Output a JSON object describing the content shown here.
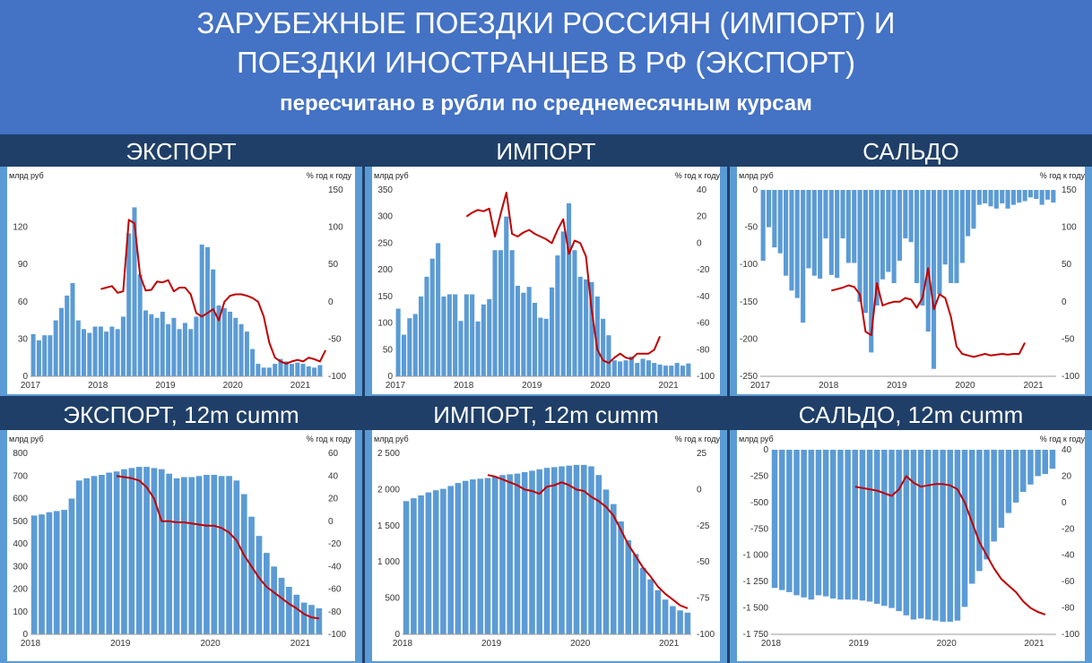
{
  "header": {
    "title_line1": "ЗАРУБЕЖНЫЕ ПОЕЗДКИ РОССИЯН (ИМПОРТ) И",
    "title_line2": "ПОЕЗДКИ ИНОСТРАНЦЕВ В РФ (ЭКСПОРТ)",
    "subtitle": "пересчитано в рубли по среднемесячным курсам"
  },
  "colors": {
    "bar": "#5b9bd5",
    "line": "#c00000",
    "header": "#4472c4",
    "background": "#1f3f68"
  },
  "chart_data": [
    {
      "type": "bar",
      "title": "ЭКСПОРТ",
      "ylabel": "млрд руб",
      "y2label": "% год к году",
      "ylim": [
        0,
        150
      ],
      "yticks": [
        0,
        30,
        60,
        90,
        120
      ],
      "y2lim": [
        -100,
        150
      ],
      "y2ticks": [
        -100,
        -50,
        0,
        50,
        100,
        150
      ],
      "xlabels": [
        "2017",
        "2018",
        "2019",
        "2020",
        "2021"
      ],
      "x0": 2017,
      "n": 52,
      "line_start": 12,
      "values": [
        34,
        29,
        33,
        33,
        45,
        55,
        65,
        75,
        45,
        38,
        35,
        40,
        40,
        36,
        40,
        38,
        48,
        115,
        136,
        82,
        53,
        50,
        47,
        52,
        42,
        47,
        38,
        43,
        38,
        48,
        106,
        104,
        86,
        57,
        55,
        52,
        47,
        42,
        36,
        22,
        10,
        7,
        7,
        10,
        14,
        12,
        10,
        11,
        10,
        8,
        7,
        9
      ],
      "yoy": [
        17,
        19,
        21,
        12,
        14,
        110,
        105,
        35,
        15,
        16,
        27,
        26,
        29,
        14,
        19,
        19,
        10,
        -15,
        -20,
        -15,
        -10,
        -25,
        0,
        8,
        10,
        10,
        8,
        5,
        0,
        -20,
        -55,
        -75,
        -80,
        -83,
        -80,
        -78,
        -80,
        -75,
        -77,
        -80,
        -65
      ]
    },
    {
      "type": "bar",
      "title": "ИМПОРТ",
      "ylabel": "млрд руб",
      "y2label": "% год к году",
      "ylim": [
        0,
        350
      ],
      "yticks": [
        0,
        50,
        100,
        150,
        200,
        250,
        300,
        350
      ],
      "y2lim": [
        -100,
        40
      ],
      "y2ticks": [
        -100,
        -80,
        -60,
        -40,
        -20,
        0,
        20,
        40
      ],
      "xlabels": [
        "2017",
        "2018",
        "2019",
        "2020",
        "2021"
      ],
      "x0": 2017,
      "n": 52,
      "line_start": 12,
      "values": [
        127,
        78,
        109,
        117,
        150,
        187,
        221,
        250,
        150,
        154,
        154,
        104,
        154,
        154,
        103,
        135,
        145,
        237,
        237,
        300,
        237,
        170,
        157,
        168,
        138,
        110,
        108,
        167,
        227,
        272,
        325,
        237,
        187,
        182,
        177,
        150,
        108,
        77,
        30,
        28,
        30,
        37,
        25,
        33,
        30,
        25,
        22,
        20,
        20,
        25,
        20,
        24
      ],
      "yoy": [
        20,
        23,
        25,
        24,
        26,
        5,
        22,
        38,
        7,
        5,
        8,
        10,
        7,
        5,
        3,
        0,
        10,
        18,
        -8,
        2,
        0,
        -10,
        -50,
        -80,
        -88,
        -90,
        -86,
        -83,
        -86,
        -87,
        -83,
        -83,
        -83,
        -80,
        -70
      ]
    },
    {
      "type": "bar",
      "title": "САЛЬДО",
      "ylabel": "млрд руб",
      "y2label": "% год к году",
      "ylim": [
        -250,
        0
      ],
      "yticks": [
        -250,
        -200,
        -150,
        -100,
        -50,
        0
      ],
      "y2lim": [
        -100,
        150
      ],
      "y2ticks": [
        -100,
        -50,
        0,
        50,
        100,
        150
      ],
      "xlabels": [
        "2017",
        "2018",
        "2019",
        "2020",
        "2021"
      ],
      "x0": 2017,
      "n": 52,
      "line_start": 12,
      "values": [
        -95,
        -50,
        -77,
        -85,
        -115,
        -135,
        -145,
        -178,
        -105,
        -115,
        -119,
        -65,
        -114,
        -118,
        -65,
        -98,
        -98,
        -150,
        -165,
        -218,
        -155,
        -120,
        -110,
        -125,
        -95,
        -65,
        -70,
        -125,
        -155,
        -190,
        -240,
        -140,
        -100,
        -125,
        -125,
        -98,
        -62,
        -52,
        -20,
        -18,
        -22,
        -25,
        -18,
        -25,
        -20,
        -17,
        -15,
        -10,
        -12,
        -20,
        -13,
        -17
      ],
      "yoy": [
        15,
        17,
        19,
        22,
        20,
        10,
        -40,
        -45,
        25,
        -5,
        -2,
        0,
        0,
        5,
        3,
        -8,
        5,
        45,
        -10,
        10,
        5,
        -20,
        -60,
        -70,
        -72,
        -74,
        -72,
        -70,
        -72,
        -71,
        -70,
        -71,
        -70,
        -70,
        -55
      ]
    },
    {
      "type": "bar",
      "title": "ЭКСПОРТ, 12m cumm",
      "ylabel": "млрд руб",
      "y2label": "% год к году",
      "ylim": [
        0,
        800
      ],
      "yticks": [
        0,
        100,
        200,
        300,
        400,
        500,
        600,
        700,
        800
      ],
      "y2lim": [
        -100,
        60
      ],
      "y2ticks": [
        -100,
        -80,
        -60,
        -40,
        -20,
        0,
        20,
        40,
        60
      ],
      "xlabels": [
        "2018",
        "2019",
        "2020",
        "2021"
      ],
      "x0": 2018,
      "n": 39,
      "line_start": 11,
      "values": [
        525,
        530,
        540,
        545,
        550,
        600,
        680,
        690,
        700,
        705,
        715,
        720,
        730,
        735,
        740,
        740,
        735,
        730,
        710,
        690,
        695,
        695,
        700,
        705,
        705,
        700,
        700,
        680,
        620,
        520,
        435,
        360,
        300,
        250,
        210,
        175,
        140,
        130,
        115
      ],
      "yoy": [
        40,
        39,
        38,
        36,
        30,
        20,
        0,
        0,
        -1,
        -1,
        -2,
        -3,
        -4,
        -4,
        -6,
        -10,
        -17,
        -30,
        -40,
        -50,
        -58,
        -63,
        -68,
        -73,
        -77,
        -82,
        -85,
        -86
      ]
    },
    {
      "type": "bar",
      "title": "ИМПОРТ, 12m cumm",
      "ylabel": "млрд руб",
      "y2label": "% год к году",
      "ylim": [
        0,
        2500
      ],
      "yticks": [
        0,
        500,
        1000,
        1500,
        2000,
        2500
      ],
      "y2ticklabels": [
        "0",
        "500",
        "1 000",
        "1 500",
        "2 000",
        "2 500"
      ],
      "y2lim": [
        -100,
        25
      ],
      "y2ticks": [
        -100,
        -75,
        -50,
        -25,
        0,
        25
      ],
      "xlabels": [
        "2018",
        "2019",
        "2020",
        "2021"
      ],
      "x0": 2018,
      "n": 39,
      "line_start": 11,
      "values": [
        1840,
        1880,
        1920,
        1960,
        1990,
        2010,
        2050,
        2090,
        2120,
        2140,
        2150,
        2160,
        2180,
        2200,
        2210,
        2220,
        2240,
        2260,
        2280,
        2300,
        2310,
        2320,
        2330,
        2340,
        2340,
        2320,
        2200,
        2000,
        1800,
        1560,
        1300,
        1110,
        920,
        760,
        610,
        480,
        390,
        330,
        300
      ],
      "yoy": [
        10,
        9,
        7,
        5,
        3,
        0,
        -1,
        -3,
        2,
        3,
        5,
        3,
        0,
        -1,
        -5,
        -8,
        -12,
        -18,
        -28,
        -38,
        -46,
        -54,
        -60,
        -67,
        -72,
        -76,
        -80,
        -82
      ]
    },
    {
      "type": "bar",
      "title": "САЛЬДО, 12m cumm",
      "ylabel": "млрд руб",
      "y2label": "% год к году",
      "ylim": [
        -1750,
        0
      ],
      "yticks": [
        -1750,
        -1500,
        -1250,
        -1000,
        -750,
        -500,
        -250,
        0
      ],
      "y2ticklabels": [
        "-1 750",
        "-1 500",
        "-1 250",
        "-1 000",
        "-750",
        "-500",
        "-250",
        "0"
      ],
      "y2lim": [
        -100,
        40
      ],
      "y2ticks": [
        -100,
        -80,
        -60,
        -40,
        -20,
        0,
        20,
        40
      ],
      "xlabels": [
        "2018",
        "2019",
        "2020",
        "2021"
      ],
      "x0": 2018,
      "n": 39,
      "line_start": 11,
      "values": [
        -1310,
        -1330,
        -1350,
        -1380,
        -1400,
        -1420,
        -1380,
        -1390,
        -1410,
        -1420,
        -1420,
        -1420,
        -1430,
        -1440,
        -1460,
        -1480,
        -1500,
        -1530,
        -1570,
        -1610,
        -1600,
        -1610,
        -1620,
        -1630,
        -1630,
        -1620,
        -1490,
        -1270,
        -1150,
        -1040,
        -870,
        -740,
        -600,
        -500,
        -400,
        -330,
        -250,
        -230,
        -180
      ],
      "yoy": [
        12,
        11,
        10,
        9,
        7,
        5,
        10,
        20,
        15,
        12,
        13,
        14,
        14,
        13,
        10,
        0,
        -15,
        -30,
        -40,
        -50,
        -58,
        -63,
        -68,
        -75,
        -80,
        -83,
        -85
      ]
    }
  ]
}
